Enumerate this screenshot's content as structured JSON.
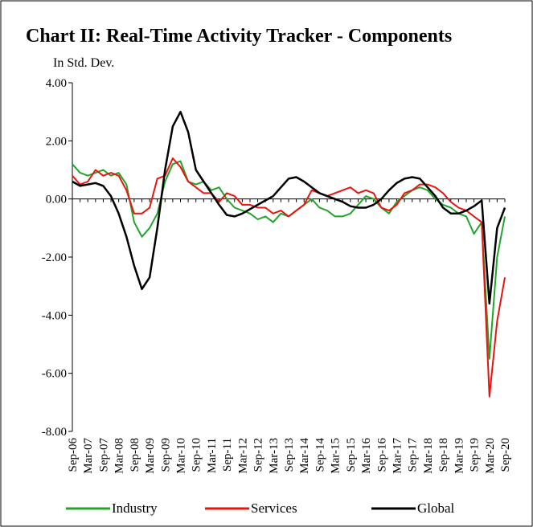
{
  "chart_data": {
    "type": "line",
    "title": "Chart II: Real-Time Activity Tracker - Components",
    "y_label": "In Std. Dev.",
    "categories": [
      "Sep-06",
      null,
      "Mar-07",
      null,
      "Sep-07",
      null,
      "Mar-08",
      null,
      "Sep-08",
      null,
      "Mar-09",
      null,
      "Sep-09",
      null,
      "Mar-10",
      null,
      "Sep-10",
      null,
      "Mar-11",
      null,
      "Sep-11",
      null,
      "Mar-12",
      null,
      "Sep-12",
      null,
      "Mar-13",
      null,
      "Sep-13",
      null,
      "Mar-14",
      null,
      "Sep-14",
      null,
      "Mar-15",
      null,
      "Sep-15",
      null,
      "Mar-16",
      null,
      "Sep-16",
      null,
      "Mar-17",
      null,
      "Sep-17",
      null,
      "Mar-18",
      null,
      "Sep-18",
      null,
      "Mar-19",
      null,
      "Sep-19",
      null,
      "Mar-20",
      null,
      "Sep-20"
    ],
    "series": [
      {
        "name": "Industry",
        "color": "#22a42c",
        "values": [
          1.2,
          0.9,
          0.8,
          0.9,
          1.0,
          0.8,
          0.9,
          0.5,
          -0.8,
          -1.3,
          -1.0,
          -0.5,
          0.6,
          1.2,
          1.3,
          0.6,
          0.5,
          0.6,
          0.3,
          0.4,
          0.0,
          -0.3,
          -0.4,
          -0.5,
          -0.7,
          -0.6,
          -0.8,
          -0.5,
          -0.6,
          -0.4,
          -0.2,
          0.0,
          -0.3,
          -0.4,
          -0.6,
          -0.6,
          -0.5,
          -0.2,
          0.1,
          0.0,
          -0.3,
          -0.5,
          -0.1,
          0.1,
          0.3,
          0.4,
          0.3,
          0.0,
          -0.2,
          -0.3,
          -0.5,
          -0.6,
          -1.2,
          -0.8,
          -5.5,
          -2.0,
          -0.6
        ]
      },
      {
        "name": "Services",
        "color": "#e8140f",
        "values": [
          0.8,
          0.5,
          0.6,
          1.0,
          0.8,
          0.9,
          0.8,
          0.3,
          -0.5,
          -0.5,
          -0.3,
          0.7,
          0.8,
          1.4,
          1.1,
          0.6,
          0.4,
          0.2,
          0.2,
          -0.1,
          0.2,
          0.1,
          -0.2,
          -0.2,
          -0.3,
          -0.3,
          -0.5,
          -0.4,
          -0.6,
          -0.4,
          -0.2,
          0.3,
          0.2,
          0.1,
          0.2,
          0.3,
          0.4,
          0.2,
          0.3,
          0.2,
          -0.3,
          -0.4,
          -0.2,
          0.2,
          0.3,
          0.5,
          0.5,
          0.4,
          0.2,
          -0.1,
          -0.3,
          -0.4,
          -0.6,
          -0.8,
          -6.8,
          -4.2,
          -2.7
        ]
      },
      {
        "name": "Global",
        "color": "#000000",
        "values": [
          0.6,
          0.45,
          0.5,
          0.55,
          0.45,
          0.1,
          -0.5,
          -1.3,
          -2.3,
          -3.1,
          -2.7,
          -1.0,
          1.0,
          2.5,
          3.0,
          2.3,
          1.0,
          0.6,
          0.2,
          -0.2,
          -0.55,
          -0.6,
          -0.5,
          -0.35,
          -0.2,
          -0.05,
          0.1,
          0.4,
          0.7,
          0.75,
          0.6,
          0.4,
          0.2,
          0.1,
          0.0,
          -0.1,
          -0.25,
          -0.3,
          -0.3,
          -0.2,
          0.0,
          0.3,
          0.55,
          0.7,
          0.75,
          0.7,
          0.4,
          0.1,
          -0.3,
          -0.5,
          -0.5,
          -0.4,
          -0.25,
          -0.05,
          -3.6,
          -1.0,
          -0.3
        ]
      }
    ],
    "ylim": [
      -8,
      4
    ],
    "yticks": [
      {
        "value": -8,
        "label": "-8.00"
      },
      {
        "value": -6,
        "label": "-6.00"
      },
      {
        "value": -4,
        "label": "-4.00"
      },
      {
        "value": -2,
        "label": "-2.00"
      },
      {
        "value": 0,
        "label": "0.00"
      },
      {
        "value": 2,
        "label": "2.00"
      },
      {
        "value": 4,
        "label": "4.00"
      }
    ],
    "legend": "bottom"
  }
}
